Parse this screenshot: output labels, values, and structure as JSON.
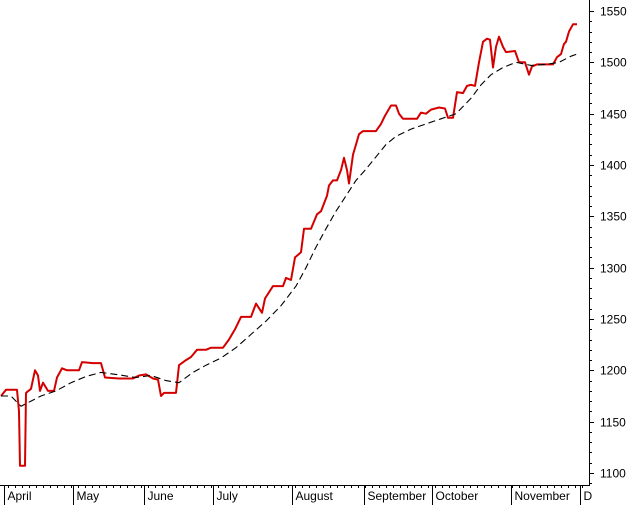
{
  "chart_data": {
    "type": "line",
    "title": "",
    "xlabel": "",
    "ylabel": "",
    "ylim": [
      1090,
      1555
    ],
    "y_ticks": [
      1100,
      1150,
      1200,
      1250,
      1300,
      1350,
      1400,
      1450,
      1500,
      1550
    ],
    "y_axis_side": "right",
    "grid": false,
    "legend": "none",
    "x_month_labels": [
      "April",
      "May",
      "June",
      "July",
      "August",
      "September",
      "October",
      "November",
      "D"
    ],
    "series": [
      {
        "style": "solid",
        "color": "#d40000",
        "points": [
          {
            "t": 0,
            "v": 1175
          },
          {
            "t": 5,
            "v": 1181
          },
          {
            "t": 16,
            "v": 1181
          },
          {
            "t": 18,
            "v": 1160
          },
          {
            "t": 19,
            "v": 1107
          },
          {
            "t": 24,
            "v": 1107
          },
          {
            "t": 25,
            "v": 1178
          },
          {
            "t": 30,
            "v": 1182
          },
          {
            "t": 34,
            "v": 1200
          },
          {
            "t": 37,
            "v": 1195
          },
          {
            "t": 39,
            "v": 1180
          },
          {
            "t": 42,
            "v": 1188
          },
          {
            "t": 47,
            "v": 1180
          },
          {
            "t": 53,
            "v": 1180
          },
          {
            "t": 56,
            "v": 1193
          },
          {
            "t": 61,
            "v": 1202
          },
          {
            "t": 66,
            "v": 1200
          },
          {
            "t": 78,
            "v": 1200
          },
          {
            "t": 81,
            "v": 1208
          },
          {
            "t": 92,
            "v": 1207
          },
          {
            "t": 100,
            "v": 1207
          },
          {
            "t": 104,
            "v": 1193
          },
          {
            "t": 118,
            "v": 1192
          },
          {
            "t": 132,
            "v": 1192
          },
          {
            "t": 138,
            "v": 1195
          },
          {
            "t": 145,
            "v": 1196
          },
          {
            "t": 152,
            "v": 1192
          },
          {
            "t": 157,
            "v": 1191
          },
          {
            "t": 160,
            "v": 1175
          },
          {
            "t": 163,
            "v": 1178
          },
          {
            "t": 175,
            "v": 1178
          },
          {
            "t": 178,
            "v": 1205
          },
          {
            "t": 185,
            "v": 1210
          },
          {
            "t": 190,
            "v": 1213
          },
          {
            "t": 196,
            "v": 1220
          },
          {
            "t": 205,
            "v": 1220
          },
          {
            "t": 210,
            "v": 1222
          },
          {
            "t": 222,
            "v": 1222
          },
          {
            "t": 228,
            "v": 1230
          },
          {
            "t": 234,
            "v": 1240
          },
          {
            "t": 240,
            "v": 1252
          },
          {
            "t": 250,
            "v": 1252
          },
          {
            "t": 255,
            "v": 1265
          },
          {
            "t": 261,
            "v": 1256
          },
          {
            "t": 264,
            "v": 1270
          },
          {
            "t": 272,
            "v": 1282
          },
          {
            "t": 282,
            "v": 1282
          },
          {
            "t": 285,
            "v": 1290
          },
          {
            "t": 290,
            "v": 1288
          },
          {
            "t": 294,
            "v": 1310
          },
          {
            "t": 300,
            "v": 1315
          },
          {
            "t": 303,
            "v": 1338
          },
          {
            "t": 310,
            "v": 1338
          },
          {
            "t": 316,
            "v": 1352
          },
          {
            "t": 320,
            "v": 1355
          },
          {
            "t": 326,
            "v": 1370
          },
          {
            "t": 328,
            "v": 1380
          },
          {
            "t": 332,
            "v": 1385
          },
          {
            "t": 336,
            "v": 1385
          },
          {
            "t": 340,
            "v": 1395
          },
          {
            "t": 343,
            "v": 1407
          },
          {
            "t": 346,
            "v": 1395
          },
          {
            "t": 348,
            "v": 1382
          },
          {
            "t": 352,
            "v": 1410
          },
          {
            "t": 355,
            "v": 1420
          },
          {
            "t": 358,
            "v": 1430
          },
          {
            "t": 362,
            "v": 1433
          },
          {
            "t": 375,
            "v": 1433
          },
          {
            "t": 380,
            "v": 1440
          },
          {
            "t": 384,
            "v": 1448
          },
          {
            "t": 390,
            "v": 1458
          },
          {
            "t": 395,
            "v": 1458
          },
          {
            "t": 398,
            "v": 1450
          },
          {
            "t": 402,
            "v": 1445
          },
          {
            "t": 416,
            "v": 1445
          },
          {
            "t": 420,
            "v": 1451
          },
          {
            "t": 425,
            "v": 1450
          },
          {
            "t": 430,
            "v": 1454
          },
          {
            "t": 438,
            "v": 1456
          },
          {
            "t": 444,
            "v": 1455
          },
          {
            "t": 447,
            "v": 1446
          },
          {
            "t": 452,
            "v": 1446
          },
          {
            "t": 456,
            "v": 1471
          },
          {
            "t": 462,
            "v": 1470
          },
          {
            "t": 466,
            "v": 1477
          },
          {
            "t": 470,
            "v": 1478
          },
          {
            "t": 474,
            "v": 1477
          },
          {
            "t": 478,
            "v": 1500
          },
          {
            "t": 482,
            "v": 1520
          },
          {
            "t": 486,
            "v": 1523
          },
          {
            "t": 489,
            "v": 1522
          },
          {
            "t": 492,
            "v": 1495
          },
          {
            "t": 495,
            "v": 1515
          },
          {
            "t": 498,
            "v": 1525
          },
          {
            "t": 502,
            "v": 1515
          },
          {
            "t": 505,
            "v": 1510
          },
          {
            "t": 514,
            "v": 1511
          },
          {
            "t": 518,
            "v": 1500
          },
          {
            "t": 524,
            "v": 1500
          },
          {
            "t": 528,
            "v": 1488
          },
          {
            "t": 531,
            "v": 1496
          },
          {
            "t": 536,
            "v": 1498
          },
          {
            "t": 552,
            "v": 1498
          },
          {
            "t": 556,
            "v": 1505
          },
          {
            "t": 560,
            "v": 1508
          },
          {
            "t": 563,
            "v": 1518
          },
          {
            "t": 565,
            "v": 1520
          },
          {
            "t": 568,
            "v": 1530
          },
          {
            "t": 572,
            "v": 1537
          },
          {
            "t": 576,
            "v": 1537
          }
        ]
      },
      {
        "style": "dashed",
        "color": "#000000",
        "points": [
          {
            "t": 0,
            "v": 1175
          },
          {
            "t": 10,
            "v": 1175
          },
          {
            "t": 20,
            "v": 1165
          },
          {
            "t": 30,
            "v": 1170
          },
          {
            "t": 40,
            "v": 1175
          },
          {
            "t": 55,
            "v": 1180
          },
          {
            "t": 70,
            "v": 1188
          },
          {
            "t": 85,
            "v": 1194
          },
          {
            "t": 100,
            "v": 1198
          },
          {
            "t": 115,
            "v": 1196
          },
          {
            "t": 135,
            "v": 1193
          },
          {
            "t": 150,
            "v": 1195
          },
          {
            "t": 165,
            "v": 1190
          },
          {
            "t": 178,
            "v": 1188
          },
          {
            "t": 192,
            "v": 1198
          },
          {
            "t": 205,
            "v": 1205
          },
          {
            "t": 220,
            "v": 1212
          },
          {
            "t": 235,
            "v": 1222
          },
          {
            "t": 250,
            "v": 1235
          },
          {
            "t": 265,
            "v": 1248
          },
          {
            "t": 280,
            "v": 1263
          },
          {
            "t": 295,
            "v": 1282
          },
          {
            "t": 305,
            "v": 1300
          },
          {
            "t": 315,
            "v": 1320
          },
          {
            "t": 325,
            "v": 1338
          },
          {
            "t": 335,
            "v": 1355
          },
          {
            "t": 345,
            "v": 1370
          },
          {
            "t": 355,
            "v": 1385
          },
          {
            "t": 365,
            "v": 1396
          },
          {
            "t": 375,
            "v": 1408
          },
          {
            "t": 385,
            "v": 1420
          },
          {
            "t": 395,
            "v": 1428
          },
          {
            "t": 410,
            "v": 1435
          },
          {
            "t": 425,
            "v": 1440
          },
          {
            "t": 440,
            "v": 1445
          },
          {
            "t": 455,
            "v": 1450
          },
          {
            "t": 470,
            "v": 1465
          },
          {
            "t": 480,
            "v": 1478
          },
          {
            "t": 490,
            "v": 1488
          },
          {
            "t": 502,
            "v": 1495
          },
          {
            "t": 515,
            "v": 1500
          },
          {
            "t": 530,
            "v": 1497
          },
          {
            "t": 545,
            "v": 1498
          },
          {
            "t": 558,
            "v": 1500
          },
          {
            "t": 570,
            "v": 1506
          },
          {
            "t": 576,
            "v": 1508
          }
        ]
      }
    ]
  }
}
